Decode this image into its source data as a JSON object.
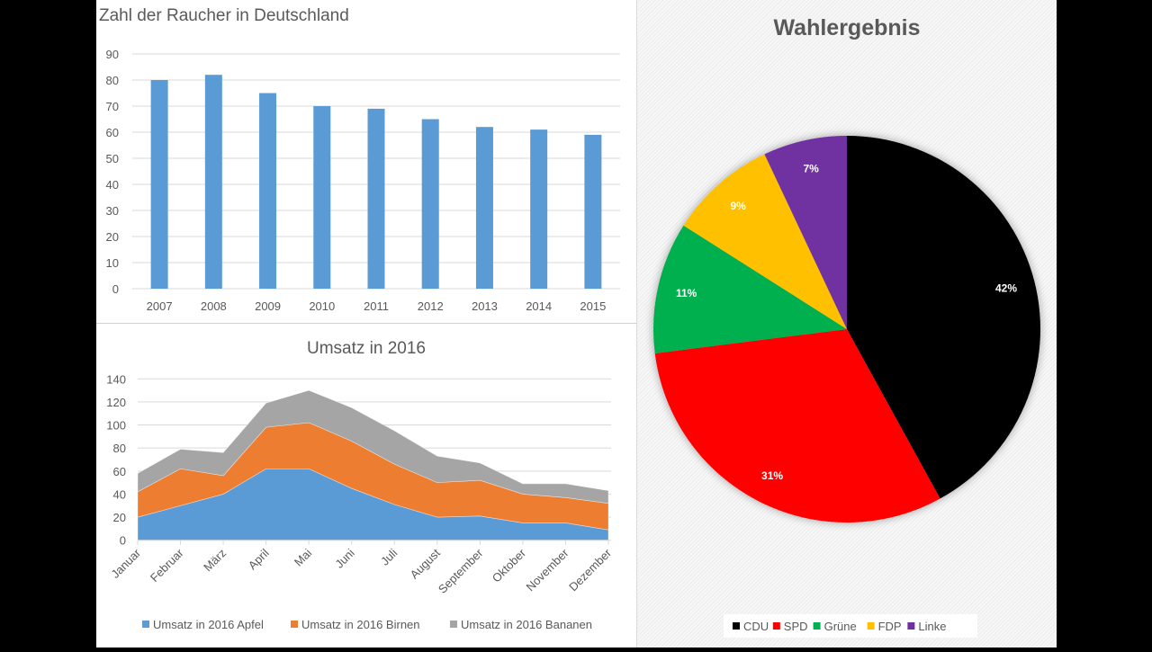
{
  "chart_data": [
    {
      "type": "bar",
      "title": "Zahl der Raucher in Deutschland",
      "categories": [
        "2007",
        "2008",
        "2009",
        "2010",
        "2011",
        "2012",
        "2013",
        "2014",
        "2015"
      ],
      "values": [
        80,
        82,
        75,
        70,
        69,
        65,
        62,
        61,
        59
      ],
      "yticks": [
        "0",
        "10",
        "20",
        "30",
        "40",
        "50",
        "60",
        "70",
        "80",
        "90"
      ],
      "ylim": [
        0,
        90
      ],
      "xlabel": "",
      "ylabel": "",
      "grid": true,
      "color": "#5b9bd5"
    },
    {
      "type": "area",
      "stacked": true,
      "title": "Umsatz in 2016",
      "categories": [
        "Januar",
        "Februar",
        "März",
        "April",
        "Mai",
        "Juni",
        "Juli",
        "August",
        "September",
        "Oktober",
        "November",
        "Dezember"
      ],
      "series": [
        {
          "name": "Umsatz in 2016 Apfel",
          "color": "#5b9bd5",
          "values": [
            20,
            30,
            40,
            62,
            62,
            45,
            31,
            20,
            21,
            15,
            15,
            9
          ]
        },
        {
          "name": "Umsatz in 2016 Birnen",
          "color": "#ed7d31",
          "values": [
            22,
            32,
            16,
            36,
            40,
            41,
            35,
            30,
            31,
            25,
            22,
            23
          ]
        },
        {
          "name": "Umsatz in 2016 Bananen",
          "color": "#a5a5a5",
          "values": [
            16,
            17,
            20,
            21,
            28,
            29,
            29,
            23,
            15,
            9,
            12,
            11
          ]
        }
      ],
      "yticks": [
        "0",
        "20",
        "40",
        "60",
        "80",
        "100",
        "120",
        "140"
      ],
      "ylim": [
        0,
        140
      ],
      "grid": true,
      "legend": "bottom"
    },
    {
      "type": "pie",
      "title": "Wahlergebnis",
      "slices": [
        {
          "label": "CDU",
          "value": 42,
          "text": "42%",
          "color": "#000000"
        },
        {
          "label": "SPD",
          "value": 31,
          "text": "31%",
          "color": "#ff0000"
        },
        {
          "label": "Grüne",
          "value": 11,
          "text": "11%",
          "color": "#00b050"
        },
        {
          "label": "FDP",
          "value": 9,
          "text": "9%",
          "color": "#ffc000"
        },
        {
          "label": "Linke",
          "value": 7,
          "text": "7%",
          "color": "#7030a0"
        }
      ],
      "legend": "bottom"
    }
  ]
}
